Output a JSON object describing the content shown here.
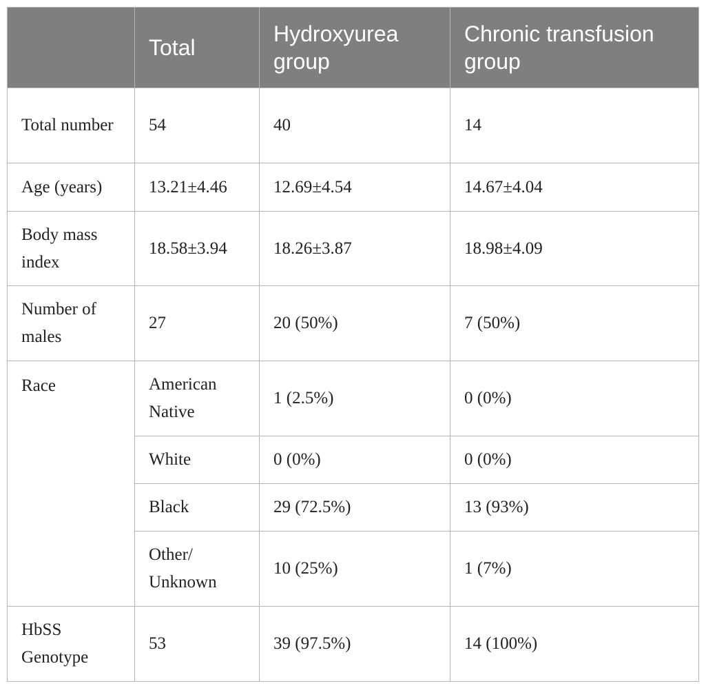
{
  "table": {
    "header": [
      "Total",
      "Hydroxyurea group",
      "Chronic transfusion group"
    ],
    "groups": [
      {
        "label": "Total number",
        "rows": [
          [
            "54",
            "40",
            "14"
          ]
        ]
      },
      {
        "label": "Age (years)",
        "rows": [
          [
            "13.21±4.46",
            "12.69±4.54",
            "14.67±4.04"
          ]
        ]
      },
      {
        "label": "Body mass index",
        "rows": [
          [
            "18.58±3.94",
            "18.26±3.87",
            "18.98±4.09"
          ]
        ]
      },
      {
        "label": "Number of males",
        "rows": [
          [
            "27",
            "20 (50%)",
            "7 (50%)"
          ]
        ]
      },
      {
        "label": "Race",
        "rows": [
          [
            "American Native",
            "1 (2.5%)",
            "0 (0%)"
          ],
          [
            "White",
            "0 (0%)",
            "0 (0%)"
          ],
          [
            "Black",
            "29 (72.5%)",
            "13 (93%)"
          ],
          [
            "Other/ Unknown",
            "10 (25%)",
            "1 (7%)"
          ]
        ]
      },
      {
        "label": "HbSS Genotype",
        "rows": [
          [
            "53",
            "39 (97.5%)",
            "14 (100%)"
          ]
        ]
      }
    ]
  }
}
